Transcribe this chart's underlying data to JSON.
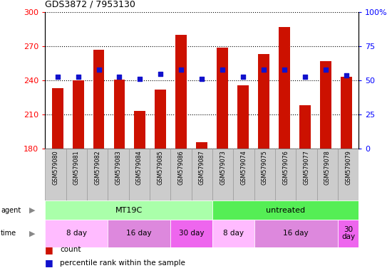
{
  "title": "GDS3872 / 7953130",
  "samples": [
    "GSM579080",
    "GSM579081",
    "GSM579082",
    "GSM579083",
    "GSM579084",
    "GSM579085",
    "GSM579086",
    "GSM579087",
    "GSM579073",
    "GSM579074",
    "GSM579075",
    "GSM579076",
    "GSM579077",
    "GSM579078",
    "GSM579079"
  ],
  "counts": [
    233,
    240,
    267,
    241,
    213,
    232,
    280,
    186,
    269,
    236,
    263,
    287,
    218,
    257,
    243
  ],
  "percentiles": [
    53,
    53,
    58,
    53,
    51,
    55,
    58,
    51,
    58,
    53,
    58,
    58,
    53,
    58,
    54
  ],
  "bar_color": "#cc1100",
  "dot_color": "#1111cc",
  "ymin": 180,
  "ymax": 300,
  "y2min": 0,
  "y2max": 100,
  "yticks": [
    180,
    210,
    240,
    270,
    300
  ],
  "y2ticks": [
    0,
    25,
    50,
    75,
    100
  ],
  "agent_groups": [
    {
      "label": "MT19C",
      "start": 0,
      "end": 8,
      "color": "#aaffaa"
    },
    {
      "label": "untreated",
      "start": 8,
      "end": 15,
      "color": "#55ee55"
    }
  ],
  "time_groups": [
    {
      "label": "8 day",
      "start": 0,
      "end": 3,
      "color": "#ffbbff"
    },
    {
      "label": "16 day",
      "start": 3,
      "end": 6,
      "color": "#dd88dd"
    },
    {
      "label": "30 day",
      "start": 6,
      "end": 8,
      "color": "#ee66ee"
    },
    {
      "label": "8 day",
      "start": 8,
      "end": 10,
      "color": "#ffbbff"
    },
    {
      "label": "16 day",
      "start": 10,
      "end": 14,
      "color": "#dd88dd"
    },
    {
      "label": "30\nday",
      "start": 14,
      "end": 15,
      "color": "#ee66ee"
    }
  ],
  "tick_bg_color": "#cccccc",
  "tick_border_color": "#999999",
  "legend_count_label": "count",
  "legend_pct_label": "percentile rank within the sample",
  "agent_row_label": "agent",
  "time_row_label": "time"
}
